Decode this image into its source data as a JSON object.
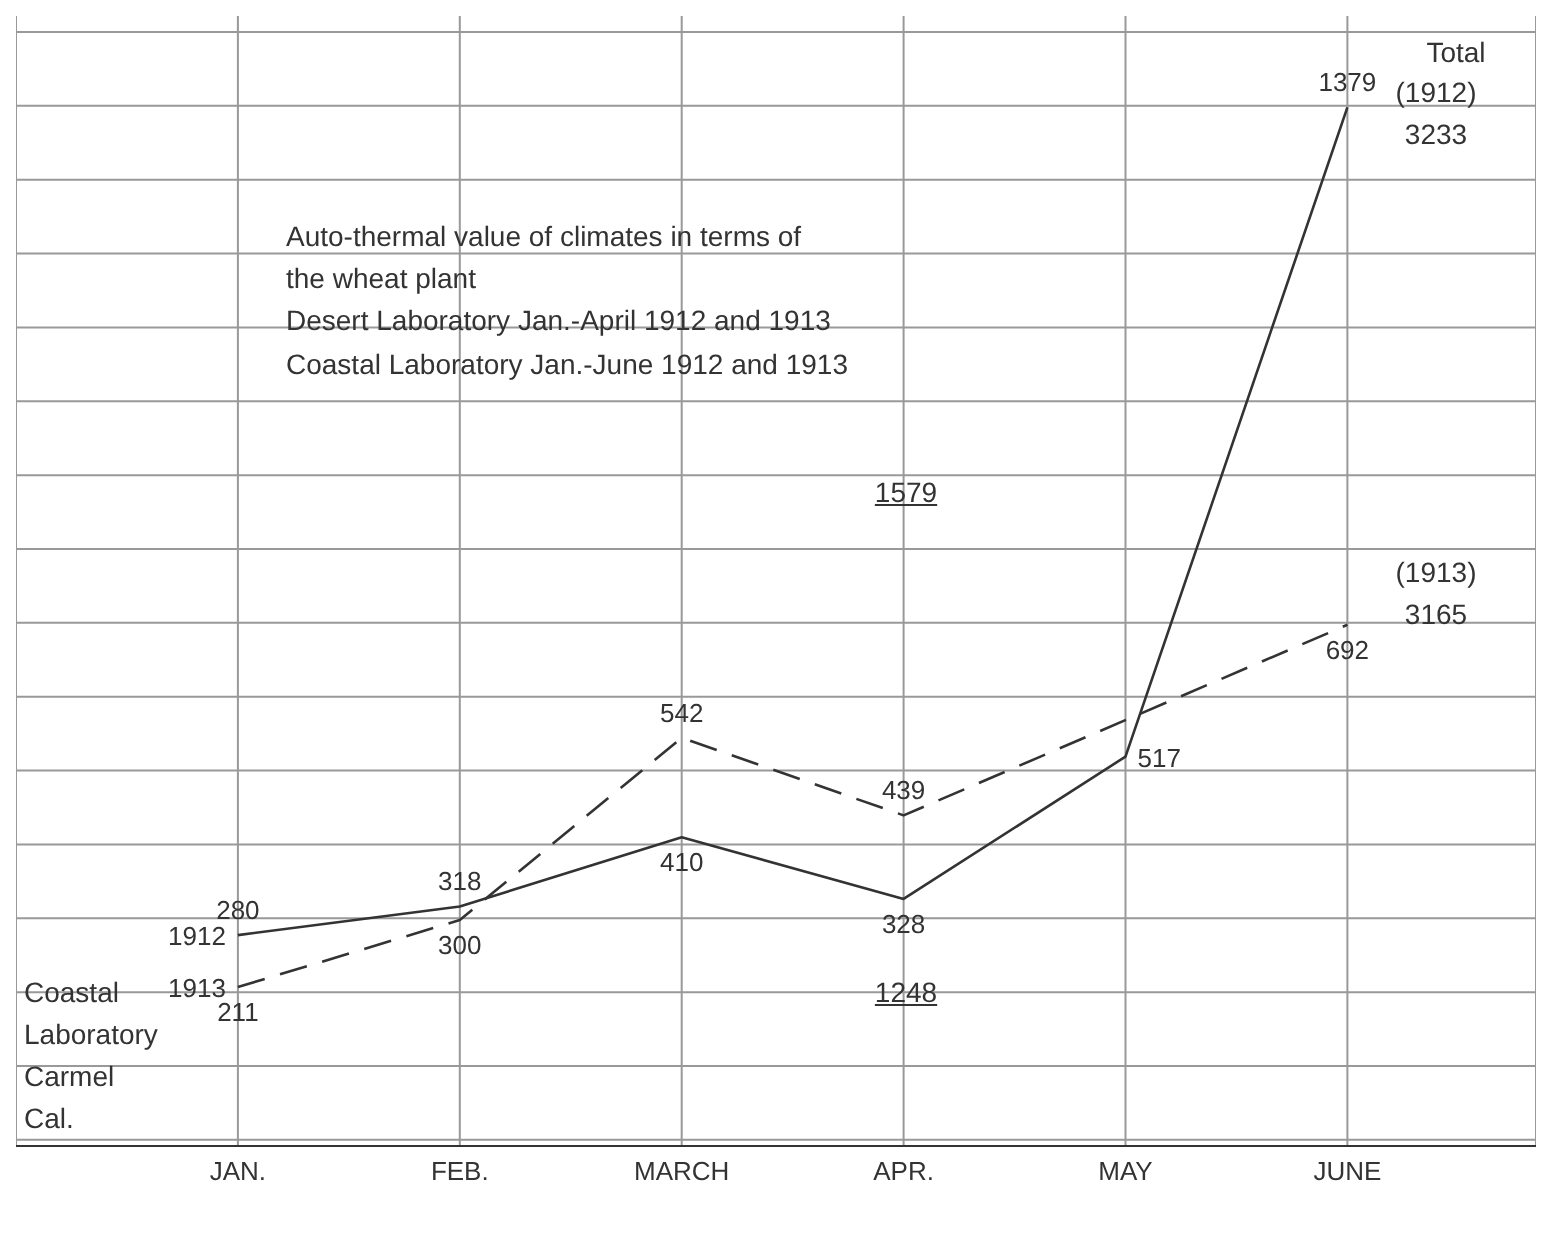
{
  "chart_data": {
    "type": "line",
    "title": "Auto-thermal value of climates in terms of the wheat plant",
    "categories": [
      "JAN.",
      "FEB.",
      "MARCH",
      "APR.",
      "MAY",
      "JUNE"
    ],
    "series": [
      {
        "name": "1912",
        "color": "#333333",
        "line_style": "solid",
        "values": [
          280,
          318,
          410,
          328,
          517,
          1379
        ],
        "value_labels": [
          "280",
          "318",
          "410",
          "328",
          "517",
          "1379"
        ]
      },
      {
        "name": "1913",
        "color": "#333333",
        "line_style": "dashed",
        "values": [
          211,
          300,
          542,
          439,
          null,
          692
        ],
        "value_labels": [
          "211",
          "300",
          "542",
          "439",
          null,
          "692"
        ]
      }
    ],
    "annotations": [
      "Desert Laboratory Jan.-April 1912 and 1913",
      "Coastal Laboratory Jan.-June 1912 and 1913",
      "Total",
      "(1912) 3233",
      "(1913) 3165",
      "1579",
      "1248",
      "Coastal Laboratory Carmel Cal."
    ],
    "grid": true,
    "marker": "none"
  }
}
